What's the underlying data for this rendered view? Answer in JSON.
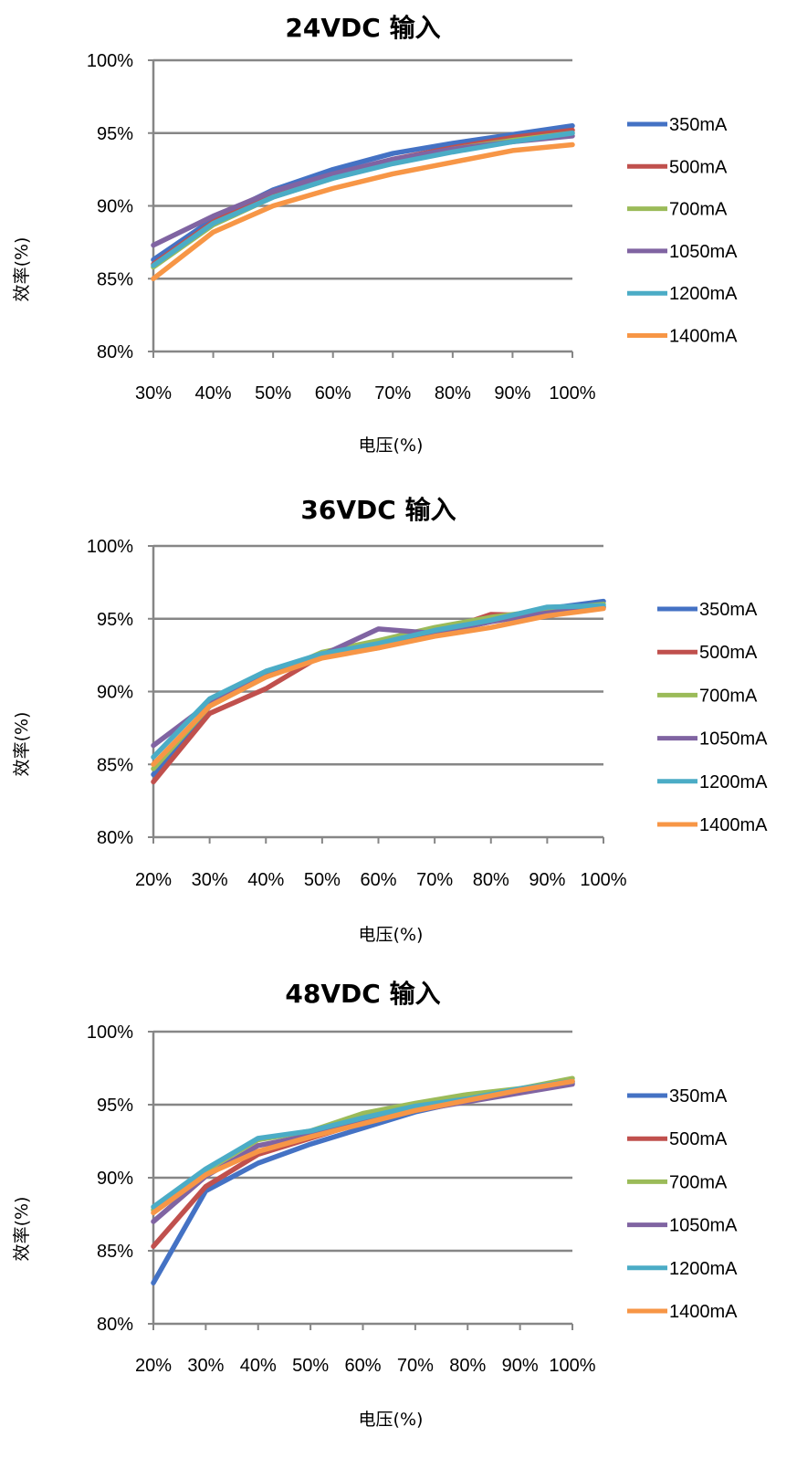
{
  "chart_data": [
    {
      "type": "line",
      "title": "24VDC 输入",
      "xlabel": "电压(%)",
      "ylabel": "效率(%)",
      "categories": [
        "30%",
        "40%",
        "50%",
        "60%",
        "70%",
        "80%",
        "90%",
        "100%"
      ],
      "yticks": [
        "80%",
        "85%",
        "90%",
        "95%",
        "100%"
      ],
      "ylim": [
        80,
        100
      ],
      "grid": "horizontal",
      "legend_position": "right",
      "series": [
        {
          "name": "350mA",
          "color": "#4472C4",
          "values": [
            86.3,
            89.1,
            91.1,
            92.5,
            93.6,
            94.3,
            94.9,
            95.5
          ]
        },
        {
          "name": "500mA",
          "color": "#C0504D",
          "values": [
            86.0,
            88.9,
            90.9,
            92.0,
            93.2,
            94.0,
            94.7,
            95.2
          ]
        },
        {
          "name": "700mA",
          "color": "#9BBB59",
          "values": [
            85.8,
            88.7,
            90.6,
            91.9,
            93.0,
            93.9,
            94.5,
            95.0
          ]
        },
        {
          "name": "1050mA",
          "color": "#8064A2",
          "values": [
            87.3,
            89.3,
            91.0,
            92.2,
            93.2,
            93.9,
            94.4,
            94.8
          ]
        },
        {
          "name": "1200mA",
          "color": "#4BACC6",
          "values": [
            85.9,
            88.8,
            90.6,
            91.9,
            92.9,
            93.7,
            94.4,
            95.0
          ]
        },
        {
          "name": "1400mA",
          "color": "#F79646",
          "values": [
            85.0,
            88.2,
            90.0,
            91.2,
            92.2,
            93.0,
            93.8,
            94.2
          ]
        }
      ]
    },
    {
      "type": "line",
      "title": "36VDC 输入",
      "xlabel": "电压(%)",
      "ylabel": "效率(%)",
      "categories": [
        "20%",
        "30%",
        "40%",
        "50%",
        "60%",
        "70%",
        "80%",
        "90%",
        "100%"
      ],
      "yticks": [
        "80%",
        "85%",
        "90%",
        "95%",
        "100%"
      ],
      "ylim": [
        80,
        100
      ],
      "grid": "horizontal",
      "legend_position": "right",
      "series": [
        {
          "name": "350mA",
          "color": "#4472C4",
          "values": [
            84.3,
            89.0,
            91.2,
            92.5,
            93.2,
            94.0,
            94.8,
            95.7,
            96.2
          ]
        },
        {
          "name": "500mA",
          "color": "#C0504D",
          "values": [
            83.8,
            88.5,
            90.2,
            92.5,
            93.0,
            94.0,
            95.3,
            95.2,
            95.8
          ]
        },
        {
          "name": "700mA",
          "color": "#9BBB59",
          "values": [
            84.7,
            89.0,
            91.0,
            92.7,
            93.5,
            94.4,
            95.1,
            95.6,
            96.0
          ]
        },
        {
          "name": "1050mA",
          "color": "#8064A2",
          "values": [
            86.3,
            89.2,
            91.0,
            92.5,
            94.3,
            94.0,
            94.8,
            95.4,
            95.8
          ]
        },
        {
          "name": "1200mA",
          "color": "#4BACC6",
          "values": [
            85.5,
            89.5,
            91.4,
            92.6,
            93.3,
            94.2,
            94.9,
            95.8,
            95.9
          ]
        },
        {
          "name": "1400mA",
          "color": "#F79646",
          "values": [
            85.0,
            89.0,
            91.0,
            92.3,
            93.0,
            93.8,
            94.4,
            95.2,
            95.7
          ]
        }
      ]
    },
    {
      "type": "line",
      "title": "48VDC 输入",
      "xlabel": "电压(%)",
      "ylabel": "效率(%)",
      "categories": [
        "20%",
        "30%",
        "40%",
        "50%",
        "60%",
        "70%",
        "80%",
        "90%",
        "100%"
      ],
      "yticks": [
        "80%",
        "85%",
        "90%",
        "95%",
        "100%"
      ],
      "ylim": [
        80,
        100
      ],
      "grid": "horizontal",
      "legend_position": "right",
      "series": [
        {
          "name": "350mA",
          "color": "#4472C4",
          "values": [
            82.8,
            89.1,
            91.0,
            92.3,
            93.4,
            94.5,
            95.3,
            96.0,
            96.5
          ]
        },
        {
          "name": "500mA",
          "color": "#C0504D",
          "values": [
            85.3,
            89.4,
            91.6,
            92.7,
            93.8,
            94.7,
            95.3,
            96.0,
            96.6
          ]
        },
        {
          "name": "700mA",
          "color": "#9BBB59",
          "values": [
            87.8,
            90.5,
            92.6,
            93.2,
            94.4,
            95.1,
            95.7,
            96.1,
            96.8
          ]
        },
        {
          "name": "1050mA",
          "color": "#8064A2",
          "values": [
            87.0,
            90.1,
            92.2,
            92.9,
            93.9,
            94.6,
            95.2,
            95.8,
            96.4
          ]
        },
        {
          "name": "1200mA",
          "color": "#4BACC6",
          "values": [
            88.0,
            90.6,
            92.7,
            93.2,
            94.1,
            94.9,
            95.4,
            96.1,
            96.6
          ]
        },
        {
          "name": "1400mA",
          "color": "#F79646",
          "values": [
            87.6,
            90.2,
            91.8,
            92.8,
            93.7,
            94.6,
            95.3,
            96.0,
            96.6
          ]
        }
      ]
    }
  ]
}
